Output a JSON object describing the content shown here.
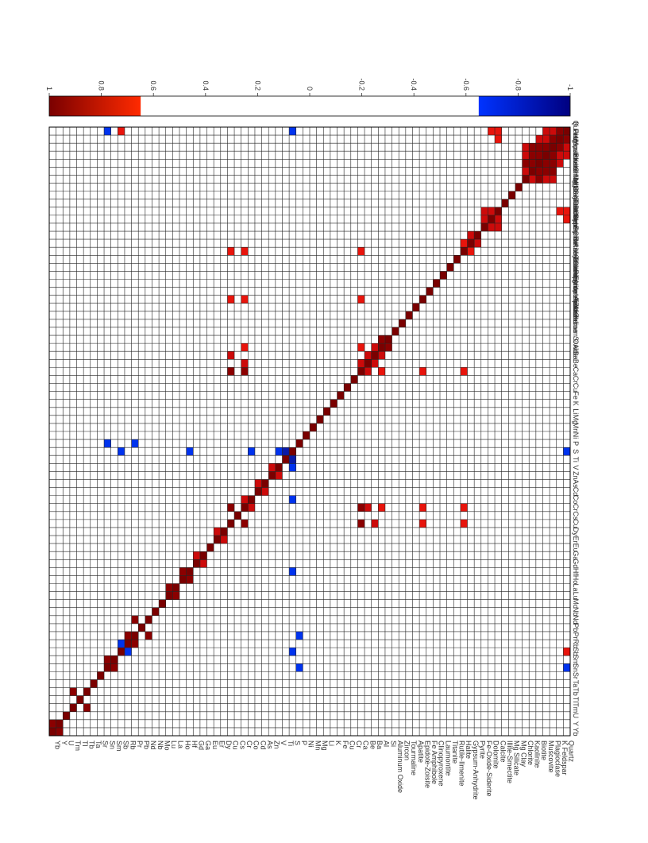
{
  "chart_data": {
    "type": "heatmap",
    "title": "",
    "matrix_layout": "symmetric correlation matrix; diagonal +1, cells with |r| below the color threshold drawn white",
    "variables_bottom_axis": [
      "Yb",
      "Y",
      "U",
      "Tm",
      "Tl",
      "Tb",
      "Ta",
      "Sr",
      "Sn",
      "Sm",
      "Sb",
      "Rb",
      "Pr",
      "Pb",
      "Nd",
      "Nb",
      "Mo",
      "Lu",
      "La",
      "Ho",
      "Hf",
      "Gd",
      "Ga",
      "Eu",
      "Er",
      "Dy",
      "Cu",
      "Cs",
      "Cr",
      "Co",
      "Cd",
      "As",
      "Zn",
      "V",
      "Ti",
      "S",
      "P",
      "Ni",
      "Mn",
      "Mg",
      "Li",
      "K",
      "Fe",
      "Cu",
      "Cr",
      "Ca",
      "Be",
      "Ba",
      "Al",
      "Si",
      "Aluminum Oxide",
      "Zircon",
      "Tourmaline",
      "Apatite",
      "Epidote-Zoisite",
      "Fe Amphibole",
      "Clinopyroxene",
      "Laumontite",
      "Titanite",
      "Rutile-Ilmenite",
      "Halite",
      "Gypsum-Anhydrite",
      "Pyrite",
      "Fe-Oxide-Siderite",
      "Dolomite",
      "Calcite",
      "Illite-Smectite",
      "Mg Silicate",
      "Mg Clay",
      "Chlorite",
      "Kaolinite",
      "Biotite",
      "Muscovite",
      "Plagioclase",
      "K Feldspar",
      "Quartz"
    ],
    "variables_right_axis": [
      "Yb",
      "Y",
      "U",
      "Tm",
      "Tl",
      "Tb",
      "Ta",
      "Sr",
      "Sn",
      "Sm",
      "Sb",
      "Rb",
      "Pr",
      "Pb",
      "Nd",
      "Nb",
      "Mo",
      "Lu",
      "La",
      "Ho",
      "Hf",
      "Gd",
      "Ga",
      "Eu",
      "Er",
      "Dy",
      "Cu",
      "Cs",
      "Cr",
      "Co",
      "Cd",
      "As",
      "Zn",
      "V",
      "Ti",
      "S",
      "P",
      "Ni",
      "Mn",
      "Mg",
      "Li",
      "K",
      "Fe",
      "Cu",
      "Cr",
      "Ca",
      "Be",
      "Ba",
      "Al",
      "Si",
      "Aluminum Oxide",
      "Zircon",
      "Tourmaline",
      "Apatite",
      "Epidote-Zoisite",
      "Fe Amphibole",
      "Clinopyroxene",
      "Laumontite",
      "Titanite",
      "Rutile-Ilmenite",
      "Halite",
      "Gypsum-Anhydrite",
      "Pyrite",
      "Fe-Oxide-Siderite",
      "Dolomite",
      "Calcite",
      "Illite-Smectite",
      "Mg Silicate",
      "Mg Clay",
      "Chlorite",
      "Kaolinite",
      "Biotite",
      "Muscovite",
      "Plagioclase",
      "K Feldspar",
      "Quartz"
    ],
    "colorbar": {
      "ticks": [
        "1",
        "0.8",
        "0.6",
        "0.4",
        "0.2",
        "0",
        "-0.2",
        "-0.4",
        "-0.6",
        "-0.8",
        "-1"
      ],
      "range": [
        -1,
        1
      ],
      "positive_threshold": 0.65,
      "negative_threshold": -0.65,
      "colors": {
        "strong_positive": "#7a0000",
        "positive": "#e01010",
        "threshold_positive": "#ff2a00",
        "white": "#ffffff",
        "threshold_negative": "#0033ff",
        "strong_negative": "#000080"
      }
    },
    "correlations": [
      {
        "a": "Quartz",
        "b": "K Feldspar",
        "r": 0.95
      },
      {
        "a": "Quartz",
        "b": "Plagioclase",
        "r": 0.82
      },
      {
        "a": "Quartz",
        "b": "Muscovite",
        "r": 0.8
      },
      {
        "a": "K Feldspar",
        "b": "Plagioclase",
        "r": 0.9
      },
      {
        "a": "K Feldspar",
        "b": "Muscovite",
        "r": 0.82
      },
      {
        "a": "K Feldspar",
        "b": "Biotite",
        "r": 0.78
      },
      {
        "a": "Plagioclase",
        "b": "Muscovite",
        "r": 0.92
      },
      {
        "a": "Plagioclase",
        "b": "Biotite",
        "r": 0.9
      },
      {
        "a": "Plagioclase",
        "b": "Kaolinite",
        "r": 0.85
      },
      {
        "a": "Plagioclase",
        "b": "Chlorite",
        "r": 0.8
      },
      {
        "a": "Muscovite",
        "b": "Biotite",
        "r": 0.95
      },
      {
        "a": "Muscovite",
        "b": "Kaolinite",
        "r": 0.85
      },
      {
        "a": "Muscovite",
        "b": "Chlorite",
        "r": 0.82
      },
      {
        "a": "Biotite",
        "b": "Kaolinite",
        "r": 0.9
      },
      {
        "a": "Biotite",
        "b": "Chlorite",
        "r": 0.88
      },
      {
        "a": "Kaolinite",
        "b": "Chlorite",
        "r": 0.8
      },
      {
        "a": "Calcite",
        "b": "Dolomite",
        "r": 0.8
      },
      {
        "a": "Calcite",
        "b": "Fe-Oxide-Siderite",
        "r": 0.82
      },
      {
        "a": "Dolomite",
        "b": "Fe-Oxide-Siderite",
        "r": 0.8
      },
      {
        "a": "Calcite",
        "b": "Quartz",
        "r": 0.7
      },
      {
        "a": "Calcite",
        "b": "K Feldspar",
        "r": 0.7
      },
      {
        "a": "Dolomite",
        "b": "Quartz",
        "r": 0.7
      },
      {
        "a": "Quartz",
        "b": "Sb",
        "r": 0.7
      },
      {
        "a": "Quartz",
        "b": "S",
        "r": -0.7
      },
      {
        "a": "Quartz",
        "b": "Sn",
        "r": -0.7
      },
      {
        "a": "Pyrite",
        "b": "Gypsum-Anhydrite",
        "r": 0.75
      },
      {
        "a": "Halite",
        "b": "Gypsum-Anhydrite",
        "r": 0.72
      },
      {
        "a": "Cr",
        "b": "Cu",
        "r": 0.9
      },
      {
        "a": "Cr",
        "b": "Ca",
        "r": 0.85
      },
      {
        "a": "Cu",
        "b": "Ca",
        "r": 0.85
      },
      {
        "a": "Ca",
        "b": "Be",
        "r": 0.8
      },
      {
        "a": "Be",
        "b": "Ba",
        "r": 0.8
      },
      {
        "a": "Ba",
        "b": "Al",
        "r": 0.82
      },
      {
        "a": "Al",
        "b": "Si",
        "r": 0.85
      },
      {
        "a": "Cr",
        "b": "Be",
        "r": 0.78
      },
      {
        "a": "Cu",
        "b": "Ba",
        "r": 0.76
      },
      {
        "a": "Ca",
        "b": "Al",
        "r": 0.74
      },
      {
        "a": "Cr",
        "b": "Al",
        "r": 0.72
      },
      {
        "a": "Cr",
        "b": "Epidote-Zoisite",
        "r": 0.7
      },
      {
        "a": "Cu",
        "b": "Epidote-Zoisite",
        "r": 0.7
      },
      {
        "a": "Ca",
        "b": "Epidote-Zoisite",
        "r": 0.7
      },
      {
        "a": "Cr",
        "b": "Halite",
        "r": 0.7
      },
      {
        "a": "Cu",
        "b": "Halite",
        "r": 0.7
      },
      {
        "a": "Ca",
        "b": "Halite",
        "r": 0.7
      },
      {
        "a": "S",
        "b": "V",
        "r": -0.72
      },
      {
        "a": "S",
        "b": "Ti",
        "r": -0.75
      },
      {
        "a": "P",
        "b": "Sn",
        "r": -0.7
      },
      {
        "a": "P",
        "b": "Pr",
        "r": -0.7
      },
      {
        "a": "Rb",
        "b": "Pr",
        "r": 0.9
      },
      {
        "a": "Sm",
        "b": "Sn",
        "r": 0.88
      },
      {
        "a": "Yb",
        "b": "Y",
        "r": 0.92
      },
      {
        "a": "Tm",
        "b": "Tb",
        "r": 0.9
      },
      {
        "a": "Nd",
        "b": "Pr",
        "r": 0.85
      },
      {
        "a": "Lu",
        "b": "La",
        "r": 0.88
      },
      {
        "a": "Ho",
        "b": "Hf",
        "r": 0.85
      },
      {
        "a": "Gd",
        "b": "Ga",
        "r": 0.8
      },
      {
        "a": "Dy",
        "b": "Er",
        "r": 0.82
      },
      {
        "a": "Co",
        "b": "Cr",
        "r": 0.8
      },
      {
        "a": "As",
        "b": "Cd",
        "r": 0.78
      },
      {
        "a": "Zn",
        "b": "V",
        "r": 0.75
      },
      {
        "a": "Rb",
        "b": "Sb",
        "r": -0.72
      },
      {
        "a": "Sb",
        "b": "S",
        "r": -0.7
      },
      {
        "a": "Hf",
        "b": "S",
        "r": -0.7
      },
      {
        "a": "Co",
        "b": "S",
        "r": -0.7
      }
    ]
  }
}
